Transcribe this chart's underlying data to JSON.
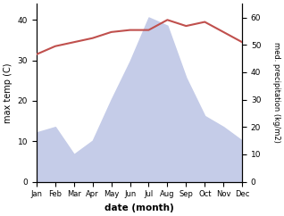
{
  "months": [
    "Jan",
    "Feb",
    "Mar",
    "Apr",
    "May",
    "Jun",
    "Jul",
    "Aug",
    "Sep",
    "Oct",
    "Nov",
    "Dec"
  ],
  "month_indices": [
    1,
    2,
    3,
    4,
    5,
    6,
    7,
    8,
    9,
    10,
    11,
    12
  ],
  "max_temp": [
    31.5,
    33.5,
    34.5,
    35.5,
    37.0,
    37.5,
    37.5,
    40.0,
    38.5,
    39.5,
    37.0,
    34.5
  ],
  "precipitation": [
    18,
    20,
    10,
    15,
    30,
    44,
    60,
    57,
    38,
    24,
    20,
    15
  ],
  "temp_color": "#c0504d",
  "precip_fill_color": "#c5cce8",
  "temp_ylim": [
    0,
    44
  ],
  "temp_yticks": [
    0,
    10,
    20,
    30,
    40
  ],
  "precip_ylim": [
    0,
    65
  ],
  "precip_yticks": [
    0,
    10,
    20,
    30,
    40,
    50,
    60
  ],
  "xlabel": "date (month)",
  "ylabel_left": "max temp (C)",
  "ylabel_right": "med. precipitation (kg/m2)",
  "fig_width": 3.18,
  "fig_height": 2.42,
  "dpi": 100
}
